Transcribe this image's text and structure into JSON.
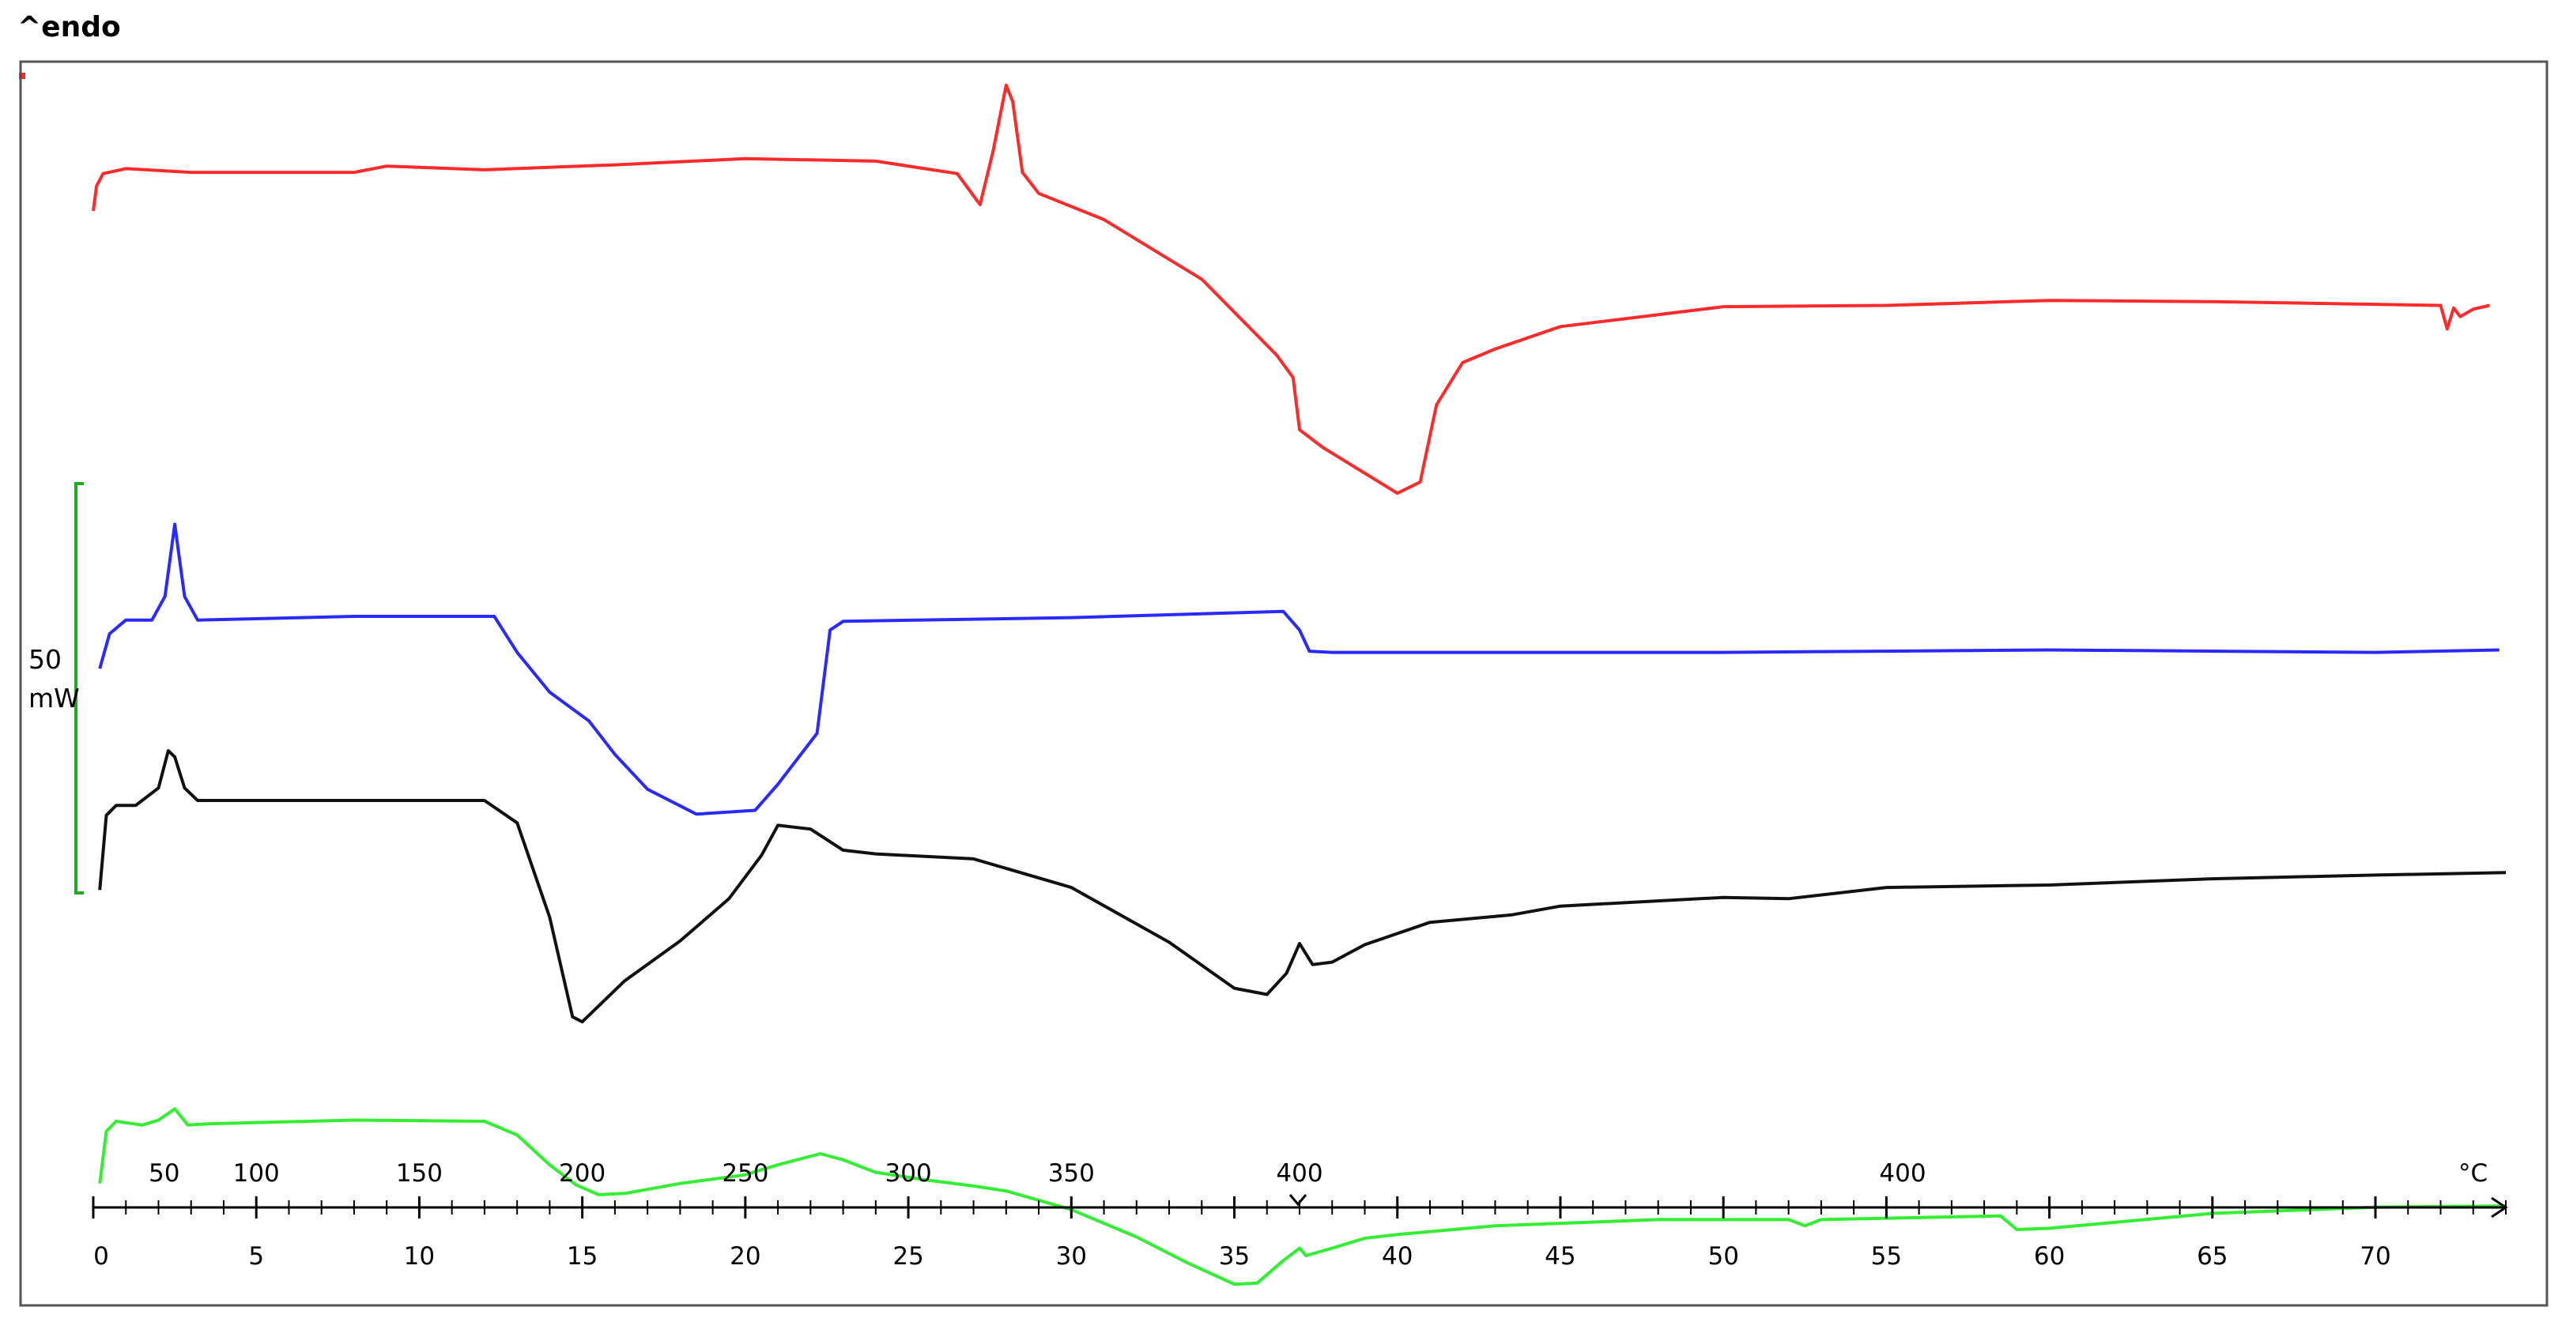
{
  "header": {
    "endo_label": "^endo"
  },
  "scale_bar": {
    "value": "50",
    "unit": "mW",
    "color": "#22aa22"
  },
  "chart_data": {
    "type": "line",
    "title": "",
    "ylabel": "",
    "temperature_axis": {
      "unit_label": "°C",
      "ticks": [
        {
          "t": 0,
          "label": "50"
        },
        {
          "t": 5,
          "label": "100"
        },
        {
          "t": 10,
          "label": "150"
        },
        {
          "t": 15,
          "label": "200"
        },
        {
          "t": 20,
          "label": "250"
        },
        {
          "t": 25,
          "label": "300"
        },
        {
          "t": 30,
          "label": "350"
        },
        {
          "t": 37,
          "label": "400"
        },
        {
          "t": 55.5,
          "label": "400"
        }
      ]
    },
    "time_axis": {
      "range": [
        0,
        74
      ],
      "labels": [
        "0",
        "5",
        "10",
        "15",
        "20",
        "25",
        "30",
        "35",
        "40",
        "45",
        "50",
        "55",
        "60",
        "65",
        "70"
      ]
    },
    "series": [
      {
        "color": "#ff2a2a",
        "points": [
          [
            0,
            12
          ],
          [
            0.1,
            10
          ],
          [
            0.3,
            9
          ],
          [
            1,
            8.6
          ],
          [
            3,
            8.9
          ],
          [
            8,
            8.9
          ],
          [
            9,
            8.4
          ],
          [
            12,
            8.7
          ],
          [
            16,
            8.3
          ],
          [
            20,
            7.8
          ],
          [
            24,
            8
          ],
          [
            26.5,
            9
          ],
          [
            27.2,
            11.5
          ],
          [
            27.6,
            7.2
          ],
          [
            28,
            1.9
          ],
          [
            28.2,
            3.2
          ],
          [
            28.5,
            8.9
          ],
          [
            29,
            10.6
          ],
          [
            31,
            12.7
          ],
          [
            34,
            17.5
          ],
          [
            36.3,
            23.6
          ],
          [
            36.8,
            25.4
          ],
          [
            37,
            29.6
          ],
          [
            37.7,
            31
          ],
          [
            40,
            34.7
          ],
          [
            40.7,
            33.8
          ],
          [
            41.2,
            27.6
          ],
          [
            42,
            24.2
          ],
          [
            43,
            23.1
          ],
          [
            45,
            21.3
          ],
          [
            50,
            19.7
          ],
          [
            55,
            19.6
          ],
          [
            60,
            19.2
          ],
          [
            65,
            19.3
          ],
          [
            72,
            19.6
          ],
          [
            72.2,
            21.5
          ],
          [
            72.4,
            19.8
          ],
          [
            72.6,
            20.5
          ],
          [
            73,
            19.9
          ],
          [
            73.5,
            19.6
          ]
        ]
      },
      {
        "color": "#2a2aff",
        "points": [
          [
            0.2,
            48.8
          ],
          [
            0.5,
            46
          ],
          [
            1,
            44.9
          ],
          [
            1.8,
            44.9
          ],
          [
            2.2,
            43
          ],
          [
            2.5,
            37.2
          ],
          [
            2.8,
            43
          ],
          [
            3.2,
            44.9
          ],
          [
            8,
            44.6
          ],
          [
            12.3,
            44.6
          ],
          [
            13,
            47.5
          ],
          [
            14,
            50.7
          ],
          [
            15.2,
            53
          ],
          [
            16,
            55.7
          ],
          [
            17,
            58.5
          ],
          [
            18.5,
            60.5
          ],
          [
            20.3,
            60.2
          ],
          [
            21,
            58.1
          ],
          [
            22.2,
            54
          ],
          [
            22.6,
            45.7
          ],
          [
            23,
            45
          ],
          [
            30,
            44.7
          ],
          [
            36.5,
            44.2
          ],
          [
            37,
            45.7
          ],
          [
            37.3,
            47.4
          ],
          [
            38,
            47.5
          ],
          [
            50,
            47.5
          ],
          [
            60,
            47.3
          ],
          [
            70,
            47.5
          ],
          [
            73.8,
            47.3
          ]
        ]
      },
      {
        "color": "#111111",
        "points": [
          [
            0.2,
            66.6
          ],
          [
            0.4,
            60.6
          ],
          [
            0.7,
            59.8
          ],
          [
            1.3,
            59.8
          ],
          [
            2,
            58.4
          ],
          [
            2.3,
            55.4
          ],
          [
            2.5,
            55.9
          ],
          [
            2.8,
            58.4
          ],
          [
            3.2,
            59.4
          ],
          [
            8,
            59.4
          ],
          [
            12,
            59.4
          ],
          [
            13,
            61.2
          ],
          [
            14,
            68.8
          ],
          [
            14.7,
            76.8
          ],
          [
            15,
            77.2
          ],
          [
            16.3,
            73.9
          ],
          [
            18,
            70.7
          ],
          [
            19.5,
            67.3
          ],
          [
            20.5,
            63.8
          ],
          [
            21,
            61.4
          ],
          [
            22,
            61.7
          ],
          [
            23,
            63.4
          ],
          [
            24,
            63.7
          ],
          [
            27,
            64.1
          ],
          [
            30,
            66.4
          ],
          [
            33,
            70.8
          ],
          [
            35,
            74.5
          ],
          [
            36,
            75
          ],
          [
            36.6,
            73.3
          ],
          [
            37,
            70.9
          ],
          [
            37.4,
            72.6
          ],
          [
            38,
            72.4
          ],
          [
            39,
            71
          ],
          [
            41,
            69.2
          ],
          [
            43.5,
            68.6
          ],
          [
            45,
            67.9
          ],
          [
            50,
            67.2
          ],
          [
            52,
            67.3
          ],
          [
            55,
            66.4
          ],
          [
            60,
            66.2
          ],
          [
            65,
            65.7
          ],
          [
            70,
            65.4
          ],
          [
            74,
            65.2
          ]
        ]
      },
      {
        "color": "#33ee33",
        "points": [
          [
            0.2,
            90.2
          ],
          [
            0.4,
            86
          ],
          [
            0.7,
            85.2
          ],
          [
            1.5,
            85.5
          ],
          [
            2,
            85.1
          ],
          [
            2.5,
            84.2
          ],
          [
            2.9,
            85.5
          ],
          [
            3.5,
            85.4
          ],
          [
            8,
            85.1
          ],
          [
            12,
            85.2
          ],
          [
            13,
            86.3
          ],
          [
            14,
            88.7
          ],
          [
            14.8,
            90.3
          ],
          [
            15.5,
            91.1
          ],
          [
            16.3,
            91
          ],
          [
            18,
            90.2
          ],
          [
            20,
            89.5
          ],
          [
            21,
            88.7
          ],
          [
            22.3,
            87.8
          ],
          [
            23,
            88.3
          ],
          [
            24,
            89.3
          ],
          [
            25.5,
            89.9
          ],
          [
            27,
            90.4
          ],
          [
            28,
            90.8
          ],
          [
            30,
            92.3
          ],
          [
            32,
            94.5
          ],
          [
            33.5,
            96.5
          ],
          [
            35,
            98.3
          ],
          [
            35.7,
            98.2
          ],
          [
            36.5,
            96.4
          ],
          [
            37,
            95.4
          ],
          [
            37.2,
            96
          ],
          [
            38,
            95.4
          ],
          [
            39,
            94.6
          ],
          [
            40,
            94.3
          ],
          [
            43,
            93.6
          ],
          [
            48,
            93.1
          ],
          [
            52,
            93.1
          ],
          [
            52.5,
            93.6
          ],
          [
            53,
            93.1
          ],
          [
            58.5,
            92.8
          ],
          [
            59,
            93.9
          ],
          [
            60,
            93.8
          ],
          [
            65,
            92.6
          ],
          [
            70,
            92.1
          ],
          [
            74,
            92
          ]
        ]
      }
    ]
  }
}
